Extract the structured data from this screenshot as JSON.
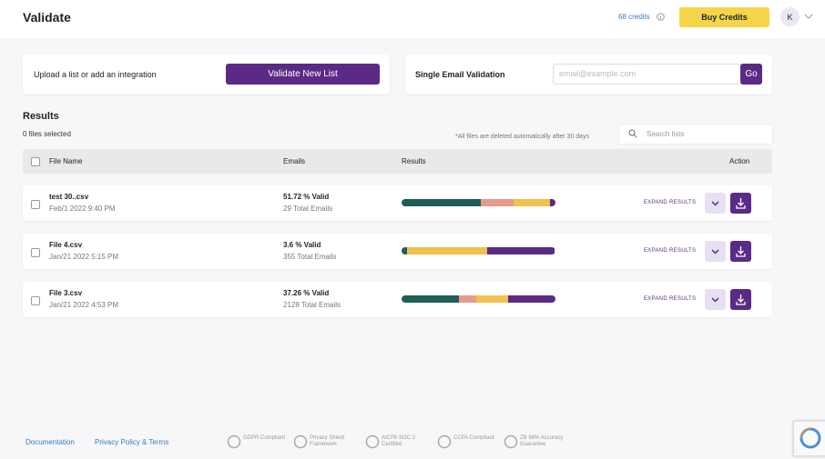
{
  "header": {
    "title": "Validate",
    "credits": "68 credits",
    "buy_button": "Buy Credits",
    "avatar": "K"
  },
  "upload_card": {
    "label": "Upload a list or add an integration",
    "button": "Validate New List"
  },
  "single_card": {
    "label": "Single Email Validation",
    "placeholder": "email@example.com",
    "button": "Go"
  },
  "results": {
    "title": "Results",
    "selected": "0 files selected",
    "note": "*All files are deleted automatically after 30 days",
    "search_placeholder": "Search lists",
    "columns": [
      "File Name",
      "Emails",
      "Results",
      "Action"
    ],
    "expand_label": "EXPAND RESULTS",
    "rows": [
      {
        "file": "test 30..csv",
        "date": "Feb/1 2022 9:40 PM",
        "valid": "51.72 % Valid",
        "total": "29 Total Emails",
        "segments": [
          {
            "color": "#1e5e58",
            "value": 51.72
          },
          {
            "color": "#e89a8a",
            "value": 21
          },
          {
            "color": "#f2c14e",
            "value": 24
          },
          {
            "color": "#5b2a86",
            "value": 3
          }
        ]
      },
      {
        "file": "File 4.csv",
        "date": "Jan/21 2022 5:15 PM",
        "valid": "3.6 % Valid",
        "total": "355 Total Emails",
        "segments": [
          {
            "color": "#1e5e58",
            "value": 3.6
          },
          {
            "color": "#f2c14e",
            "value": 52
          },
          {
            "color": "#5b2a86",
            "value": 44
          }
        ]
      },
      {
        "file": "File 3.csv",
        "date": "Jan/21 2022 4:53 PM",
        "valid": "37.26 % Valid",
        "total": "2128 Total Emails",
        "segments": [
          {
            "color": "#1e5e58",
            "value": 37.26
          },
          {
            "color": "#e89a8a",
            "value": 11
          },
          {
            "color": "#f2c14e",
            "value": 21
          },
          {
            "color": "#5b2a86",
            "value": 31
          }
        ]
      }
    ]
  },
  "footer": {
    "links": [
      "Documentation",
      "Privacy Policy & Terms"
    ],
    "badges": [
      "GDPR Compliant",
      "Privacy Shield Framework",
      "AICPA SOC 2 Certified",
      "CCPA Compliant",
      "ZB 98% Accuracy Guarantee"
    ]
  }
}
